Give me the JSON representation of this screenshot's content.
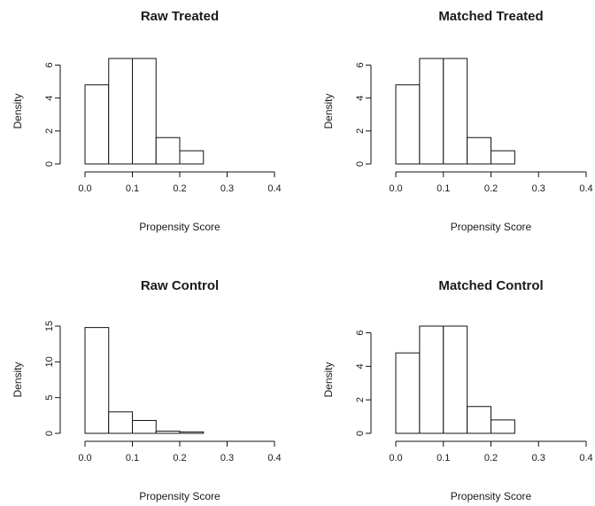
{
  "chart_data": [
    {
      "type": "bar",
      "title": "Raw Treated",
      "xlabel": "Propensity Score",
      "ylabel": "Density",
      "bin_width": 0.05,
      "bin_starts": [
        0.0,
        0.05,
        0.1,
        0.15,
        0.2
      ],
      "values": [
        4.8,
        6.4,
        6.4,
        1.6,
        0.8
      ],
      "xlim": [
        0,
        0.4
      ],
      "ylim": [
        0,
        6.4
      ],
      "xticks": [
        "0.0",
        "0.1",
        "0.2",
        "0.3",
        "0.4"
      ],
      "xtick_values": [
        0,
        0.1,
        0.2,
        0.3,
        0.4
      ],
      "yticks": [
        "0",
        "2",
        "4",
        "6"
      ],
      "ytick_values": [
        0,
        2,
        4,
        6
      ]
    },
    {
      "type": "bar",
      "title": "Matched Treated",
      "xlabel": "Propensity Score",
      "ylabel": "Density",
      "bin_width": 0.05,
      "bin_starts": [
        0.0,
        0.05,
        0.1,
        0.15,
        0.2
      ],
      "values": [
        4.8,
        6.4,
        6.4,
        1.6,
        0.8
      ],
      "xlim": [
        0,
        0.4
      ],
      "ylim": [
        0,
        6.4
      ],
      "xticks": [
        "0.0",
        "0.1",
        "0.2",
        "0.3",
        "0.4"
      ],
      "xtick_values": [
        0,
        0.1,
        0.2,
        0.3,
        0.4
      ],
      "yticks": [
        "0",
        "2",
        "4",
        "6"
      ],
      "ytick_values": [
        0,
        2,
        4,
        6
      ]
    },
    {
      "type": "bar",
      "title": "Raw Control",
      "xlabel": "Propensity Score",
      "ylabel": "Density",
      "bin_width": 0.05,
      "bin_starts": [
        0.0,
        0.05,
        0.1,
        0.15,
        0.2
      ],
      "values": [
        14.8,
        3.0,
        1.8,
        0.3,
        0.2
      ],
      "xlim": [
        0,
        0.4
      ],
      "ylim": [
        0,
        15
      ],
      "xticks": [
        "0.0",
        "0.1",
        "0.2",
        "0.3",
        "0.4"
      ],
      "xtick_values": [
        0,
        0.1,
        0.2,
        0.3,
        0.4
      ],
      "yticks": [
        "0",
        "5",
        "10",
        "15"
      ],
      "ytick_values": [
        0,
        5,
        10,
        15
      ]
    },
    {
      "type": "bar",
      "title": "Matched Control",
      "xlabel": "Propensity Score",
      "ylabel": "Density",
      "bin_width": 0.05,
      "bin_starts": [
        0.0,
        0.05,
        0.1,
        0.15,
        0.2
      ],
      "values": [
        4.8,
        6.4,
        6.4,
        1.6,
        0.8
      ],
      "xlim": [
        0,
        0.4
      ],
      "ylim": [
        0,
        6.4
      ],
      "xticks": [
        "0.0",
        "0.1",
        "0.2",
        "0.3",
        "0.4"
      ],
      "xtick_values": [
        0,
        0.1,
        0.2,
        0.3,
        0.4
      ],
      "yticks": [
        "0",
        "2",
        "4",
        "6"
      ],
      "ytick_values": [
        0,
        2,
        4,
        6
      ]
    }
  ]
}
